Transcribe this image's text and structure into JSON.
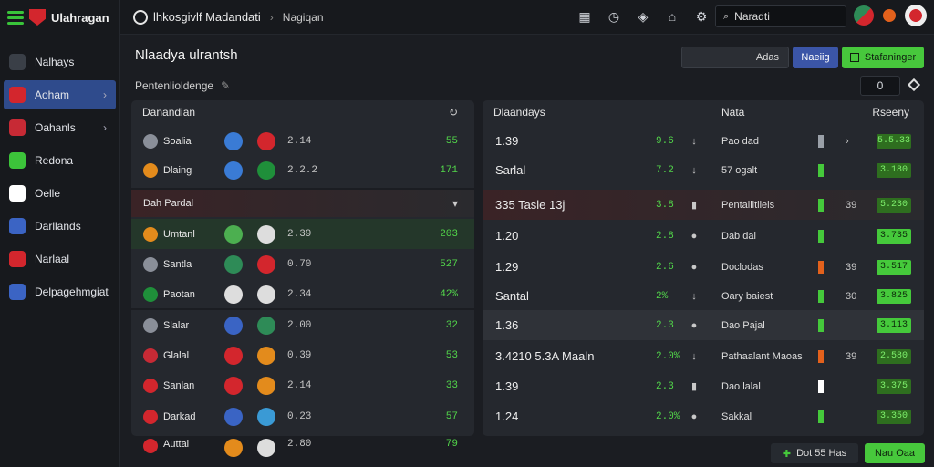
{
  "brand": {
    "name": "Ulahragan"
  },
  "sidebar": {
    "items": [
      {
        "label": "Nalhays",
        "icon": "building-icon",
        "color": "#3a3f47"
      },
      {
        "label": "Aoham",
        "icon": "soccer-ball-icon",
        "color": "#d3262d",
        "active": true
      },
      {
        "label": "Oahanls",
        "icon": "heart-icon",
        "color": "#c72a35"
      },
      {
        "label": "Redona",
        "icon": "ticket-icon",
        "color": "#3cc43a"
      },
      {
        "label": "Oelle",
        "icon": "circle-icon",
        "color": "#ffffff"
      },
      {
        "label": "Darllands",
        "icon": "diamond-icon",
        "color": "#3b64c4"
      },
      {
        "label": "Narlaal",
        "icon": "flag-icon",
        "color": "#d3262d"
      },
      {
        "label": "Delpagehmgiat",
        "icon": "shield-icon",
        "color": "#3b64c4"
      }
    ]
  },
  "topbar": {
    "crumb1": "lhkosgivlf Madandati",
    "crumb2": "Nagiqan",
    "search_value": "Naradti"
  },
  "page": {
    "title": "Nlaadya ulrantsh",
    "subtitle": "Pentenlioldenge"
  },
  "actions": {
    "dark_label": "Adas",
    "blue_label": "Naeiig",
    "green_label": "Stafaninger"
  },
  "counter": "0",
  "left_panel": {
    "header1": "Danandian",
    "header2": "Dah Pardal",
    "rows": [
      {
        "name": "Soalia",
        "score": "2.14",
        "odds": "55",
        "badge": "#8a8f99",
        "fa": "#3a7bd5",
        "fb": "#d3262d"
      },
      {
        "name": "Dlaing",
        "score": "2.2.2",
        "odds": "171",
        "badge": "#e38b1c",
        "fa": "#3a7bd5",
        "fb": "#1f8f3a"
      },
      {
        "name": "Umtanl",
        "score": "2.39",
        "odds": "203",
        "badge": "#e38b1c",
        "fa": "#4caf50",
        "fb": "#dddddd"
      },
      {
        "name": "Santla",
        "score": "0.70",
        "odds": "527",
        "badge": "#8a8f99",
        "fa": "#2e8b57",
        "fb": "#d3262d"
      },
      {
        "name": "Paotan",
        "score": "2.34",
        "odds": "42%",
        "badge": "#1f8f3a",
        "fa": "#dddddd",
        "fb": "#dddddd"
      },
      {
        "name": "Slalar",
        "score": "2.00",
        "odds": "32",
        "badge": "#8a8f99",
        "fa": "#3a64c4",
        "fb": "#2e8b57"
      },
      {
        "name": "Glalal",
        "score": "0.39",
        "odds": "53",
        "badge": "#c72a35",
        "fa": "#d3262d",
        "fb": "#e38b1c"
      },
      {
        "name": "Sanlan",
        "score": "2.14",
        "odds": "33",
        "badge": "#d3262d",
        "fa": "#d3262d",
        "fb": "#e38b1c"
      },
      {
        "name": "Darkad",
        "score": "0.23",
        "odds": "57",
        "badge": "#d3262d",
        "fa": "#3a64c4",
        "fb": "#3a9ad5"
      },
      {
        "name": "Auttal",
        "score": "2.80",
        "odds": "79",
        "badge": "#d3262d",
        "fa": "#e38b1c",
        "fb": "#dddddd"
      }
    ]
  },
  "right_panel": {
    "col1": "Dlaandays",
    "col2": "Nata",
    "col3": "Rseeny",
    "rows": [
      {
        "val": "1.39",
        "num": "9.6",
        "note": "Pao dad",
        "bar": "#9aa0a8",
        "chev": "›",
        "badge": "5.5.33",
        "bright": false,
        "icon": "↓"
      },
      {
        "val": "Sarlal",
        "num": "7.2",
        "note": "57 ogalt",
        "bar": "#45c93b",
        "chev": "",
        "badge": "3.180",
        "bright": false,
        "icon": "↓"
      },
      {
        "val": "335 Tasle 13j",
        "num": "3.8",
        "note": "Pentaliltliels",
        "bar": "#45c93b",
        "chev": "39",
        "badge": "5.230",
        "bright": false,
        "icon": "▮"
      },
      {
        "val": "1.20",
        "num": "2.8",
        "note": "Dab dal",
        "bar": "#45c93b",
        "chev": "",
        "badge": "3.735",
        "bright": true,
        "icon": "●"
      },
      {
        "val": "1.29",
        "num": "2.6",
        "note": "Doclodas",
        "bar": "#e3611c",
        "chev": "39",
        "badge": "3.517",
        "bright": true,
        "icon": "●"
      },
      {
        "val": "Santal",
        "num": "2%",
        "note": "Oary baiest",
        "bar": "#45c93b",
        "chev": "30",
        "badge": "3.825",
        "bright": true,
        "icon": "↓"
      },
      {
        "val": "1.36",
        "num": "2.3",
        "note": "Dao Pajal",
        "bar": "#45c93b",
        "chev": "",
        "badge": "3.113",
        "bright": true,
        "icon": "●"
      },
      {
        "val": "3.4210 5.3A Maaln",
        "num": "2.0%",
        "note": "Pathaalant Maoas",
        "bar": "#e3611c",
        "chev": "39",
        "badge": "2.580",
        "bright": false,
        "icon": "↓"
      },
      {
        "val": "1.39",
        "num": "2.3",
        "note": "Dao lalal",
        "bar": "#ffffff",
        "chev": "",
        "badge": "3.375",
        "bright": false,
        "icon": "▮"
      },
      {
        "val": "1.24",
        "num": "2.0%",
        "note": "Sakkal",
        "bar": "#45c93b",
        "chev": "",
        "badge": "3.350",
        "bright": false,
        "icon": "●"
      }
    ]
  },
  "footer": {
    "btn1": "Dot 55 Has",
    "btn2": "Nau Oaa"
  }
}
